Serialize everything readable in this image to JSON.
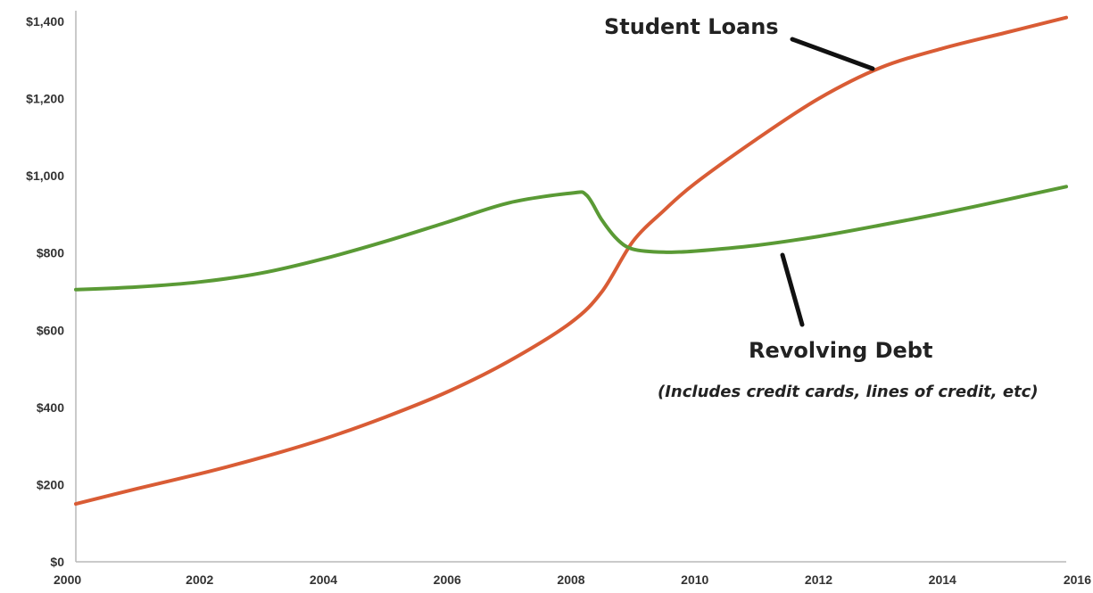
{
  "chart_data": {
    "type": "line",
    "title": "",
    "xlabel": "",
    "ylabel": "",
    "xlim": [
      2000,
      2016
    ],
    "ylim": [
      0,
      1400
    ],
    "x_ticks": [
      "2000",
      "2002",
      "2004",
      "2006",
      "2008",
      "2010",
      "2012",
      "2014",
      "2016"
    ],
    "y_ticks": [
      "$0",
      "$200",
      "$400",
      "$600",
      "$800",
      "$1,000",
      "$1,200",
      "$1,400"
    ],
    "grid": false,
    "legend": "none",
    "series": [
      {
        "name": "Student Loans",
        "color": "#d95c35",
        "x": [
          2000,
          2001,
          2002,
          2003,
          2004,
          2005,
          2006,
          2007,
          2008,
          2008.5,
          2009,
          2009.5,
          2010,
          2011,
          2012,
          2013,
          2014,
          2015,
          2016
        ],
        "values": [
          150,
          190,
          228,
          270,
          318,
          375,
          440,
          520,
          620,
          700,
          830,
          910,
          980,
          1095,
          1200,
          1280,
          1330,
          1370,
          1410
        ]
      },
      {
        "name": "Revolving Debt",
        "sublabel": "(Includes credit cards, lines of credit, etc)",
        "color": "#5a9a35",
        "x": [
          2000,
          2001,
          2002,
          2003,
          2004,
          2005,
          2006,
          2007,
          2008,
          2008.25,
          2008.5,
          2008.75,
          2009,
          2009.5,
          2010,
          2011,
          2012,
          2013,
          2014,
          2015,
          2016
        ],
        "values": [
          705,
          712,
          725,
          748,
          785,
          830,
          880,
          930,
          955,
          950,
          885,
          835,
          810,
          802,
          805,
          820,
          843,
          872,
          903,
          937,
          972
        ]
      }
    ]
  }
}
